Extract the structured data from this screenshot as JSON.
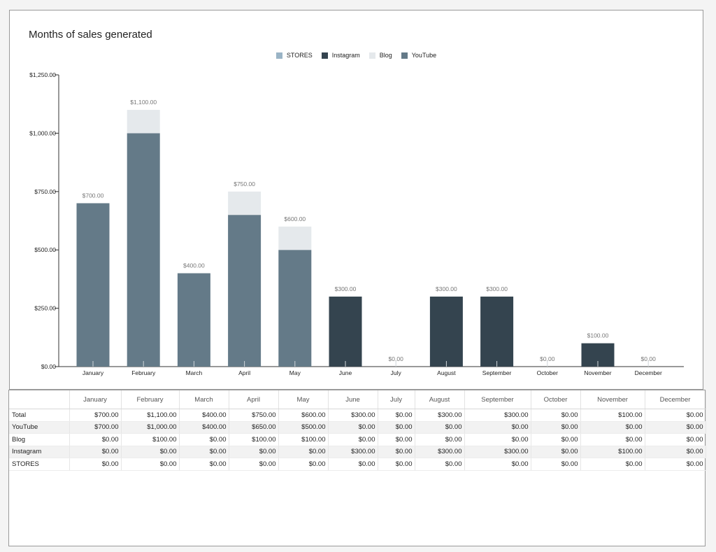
{
  "chart_data": {
    "type": "bar",
    "stacked": true,
    "title": "Months of sales generated",
    "categories": [
      "January",
      "February",
      "March",
      "April",
      "May",
      "June",
      "July",
      "August",
      "September",
      "October",
      "November",
      "December"
    ],
    "series": [
      {
        "name": "STORES",
        "color": "#9ab4c6",
        "values": [
          0,
          0,
          0,
          0,
          0,
          0,
          0,
          0,
          0,
          0,
          0,
          0
        ]
      },
      {
        "name": "Instagram",
        "color": "#34444f",
        "values": [
          0,
          0,
          0,
          0,
          0,
          300,
          0,
          300,
          300,
          0,
          100,
          0
        ]
      },
      {
        "name": "Blog",
        "color": "#e5e9ec",
        "values": [
          0,
          100,
          0,
          100,
          100,
          0,
          0,
          0,
          0,
          0,
          0,
          0
        ]
      },
      {
        "name": "YouTube",
        "color": "#647a88",
        "values": [
          700,
          1000,
          400,
          650,
          500,
          0,
          0,
          0,
          0,
          0,
          0,
          0
        ]
      }
    ],
    "totals": [
      700,
      1100,
      400,
      750,
      600,
      300,
      0,
      300,
      300,
      0,
      100,
      0
    ],
    "total_labels": [
      "$700.00",
      "$1,100.00",
      "$400.00",
      "$750.00",
      "$600.00",
      "$300.00",
      "$0.00",
      "$300.00",
      "$300.00",
      "$0.00",
      "$100.00",
      "$0.00"
    ],
    "ylim": [
      0,
      1250
    ],
    "yticks": [
      0,
      250,
      500,
      750,
      1000,
      1250
    ],
    "ytick_labels": [
      "$0.00",
      "$250.00",
      "$500.00",
      "$750.00",
      "$1,000.00",
      "$1,250.00"
    ],
    "legend_position": "top-center",
    "grid": false
  },
  "legend_order": [
    "STORES",
    "Instagram",
    "Blog",
    "YouTube"
  ],
  "table": {
    "header": [
      "January",
      "February",
      "March",
      "April",
      "May",
      "June",
      "July",
      "August",
      "September",
      "October",
      "November",
      "December"
    ],
    "rows": [
      {
        "label": "Total",
        "cells": [
          "$700.00",
          "$1,100.00",
          "$400.00",
          "$750.00",
          "$600.00",
          "$300.00",
          "$0.00",
          "$300.00",
          "$300.00",
          "$0.00",
          "$100.00",
          "$0.00"
        ]
      },
      {
        "label": "YouTube",
        "cells": [
          "$700.00",
          "$1,000.00",
          "$400.00",
          "$650.00",
          "$500.00",
          "$0.00",
          "$0.00",
          "$0.00",
          "$0.00",
          "$0.00",
          "$0.00",
          "$0.00"
        ]
      },
      {
        "label": "Blog",
        "cells": [
          "$0.00",
          "$100.00",
          "$0.00",
          "$100.00",
          "$100.00",
          "$0.00",
          "$0.00",
          "$0.00",
          "$0.00",
          "$0.00",
          "$0.00",
          "$0.00"
        ]
      },
      {
        "label": "Instagram",
        "cells": [
          "$0.00",
          "$0.00",
          "$0.00",
          "$0.00",
          "$0.00",
          "$300.00",
          "$0.00",
          "$300.00",
          "$300.00",
          "$0.00",
          "$100.00",
          "$0.00"
        ]
      },
      {
        "label": "STORES",
        "cells": [
          "$0.00",
          "$0.00",
          "$0.00",
          "$0.00",
          "$0.00",
          "$0.00",
          "$0.00",
          "$0.00",
          "$0.00",
          "$0.00",
          "$0.00",
          "$0.00"
        ]
      }
    ]
  }
}
